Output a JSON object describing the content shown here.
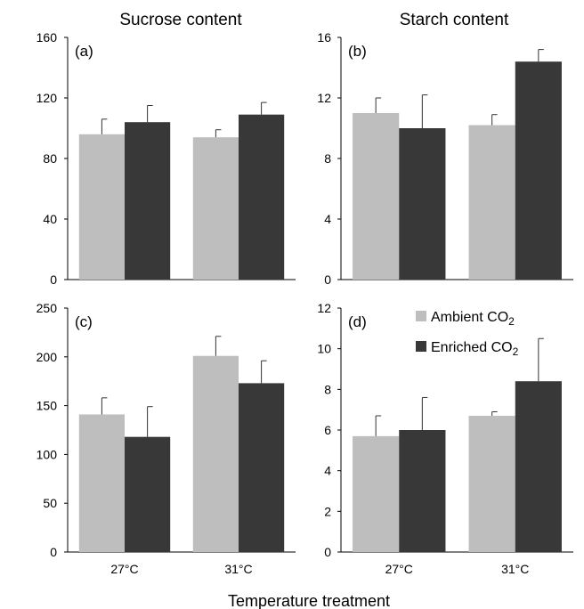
{
  "column_titles": [
    "Sucrose content",
    "Starch content"
  ],
  "x_axis_label": "Temperature treatment",
  "legend": {
    "ambient_prefix": "Ambient CO",
    "enriched_prefix": "Enriched CO",
    "subscript": "2"
  },
  "colors": {
    "ambient": "#bebebe",
    "enriched": "#383838"
  },
  "chart_data": [
    {
      "type": "bar",
      "panel": "(a)",
      "title": "Sucrose content",
      "categories": [
        "27°C",
        "31°C"
      ],
      "ylim": [
        0,
        160
      ],
      "yticks": [
        0,
        40,
        80,
        120,
        160
      ],
      "series": [
        {
          "name": "Ambient CO2",
          "values": [
            96,
            94
          ],
          "errors": [
            10,
            5
          ]
        },
        {
          "name": "Enriched CO2",
          "values": [
            104,
            109
          ],
          "errors": [
            11,
            8
          ]
        }
      ]
    },
    {
      "type": "bar",
      "panel": "(b)",
      "title": "Starch content",
      "categories": [
        "27°C",
        "31°C"
      ],
      "ylim": [
        0,
        16
      ],
      "yticks": [
        0,
        4,
        8,
        12,
        16
      ],
      "series": [
        {
          "name": "Ambient CO2",
          "values": [
            11.0,
            10.2
          ],
          "errors": [
            1.0,
            0.7
          ]
        },
        {
          "name": "Enriched CO2",
          "values": [
            10.0,
            14.4
          ],
          "errors": [
            2.2,
            0.8
          ]
        }
      ]
    },
    {
      "type": "bar",
      "panel": "(c)",
      "categories": [
        "27°C",
        "31°C"
      ],
      "ylim": [
        0,
        250
      ],
      "yticks": [
        0,
        50,
        100,
        150,
        200,
        250
      ],
      "series": [
        {
          "name": "Ambient CO2",
          "values": [
            141,
            201
          ],
          "errors": [
            17,
            20
          ]
        },
        {
          "name": "Enriched CO2",
          "values": [
            118,
            173
          ],
          "errors": [
            31,
            23
          ]
        }
      ]
    },
    {
      "type": "bar",
      "panel": "(d)",
      "categories": [
        "27°C",
        "31°C"
      ],
      "ylim": [
        0,
        12
      ],
      "yticks": [
        0,
        2,
        4,
        6,
        8,
        10,
        12
      ],
      "legend_position": "top-right",
      "series": [
        {
          "name": "Ambient CO2",
          "values": [
            5.7,
            6.7
          ],
          "errors": [
            1.0,
            0.2
          ]
        },
        {
          "name": "Enriched CO2",
          "values": [
            6.0,
            8.4
          ],
          "errors": [
            1.6,
            2.1
          ]
        }
      ]
    }
  ]
}
